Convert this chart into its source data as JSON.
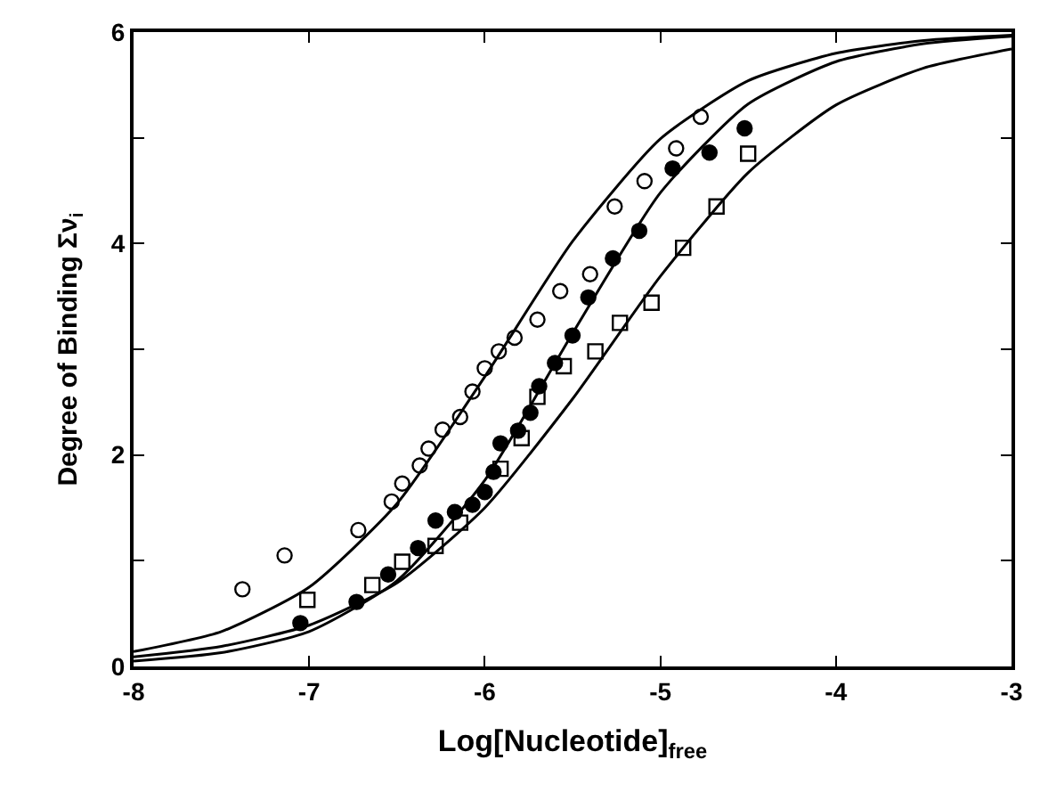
{
  "chart_data": {
    "type": "scatter",
    "xlabel": "Log[Nucleotide]$_{free}$",
    "ylabel": "Degree of Binding Σν$_{i}$",
    "xlim": [
      -8,
      -3
    ],
    "xticks": [
      -8,
      -7,
      -6,
      -5,
      -4,
      -3
    ],
    "ylim": [
      0,
      6
    ],
    "yticks": [
      0,
      {
        "value": 1,
        "label": null
      },
      2,
      {
        "value": 3,
        "label": null
      },
      4,
      {
        "value": 5,
        "label": null
      },
      6
    ],
    "series": [
      {
        "marker": "circle-open",
        "color": "#000000",
        "x": [
          -7.38,
          -7.14,
          -6.72,
          -6.53,
          -6.47,
          -6.37,
          -6.32,
          -6.24,
          -6.14,
          -6.07,
          -6.0,
          -5.92,
          -5.83,
          -5.7,
          -5.57,
          -5.4,
          -5.26,
          -5.09,
          -4.91,
          -4.77
        ],
        "values": [
          0.73,
          1.05,
          1.29,
          1.56,
          1.73,
          1.9,
          2.06,
          2.24,
          2.36,
          2.6,
          2.82,
          2.98,
          3.11,
          3.28,
          3.55,
          3.71,
          4.35,
          4.59,
          4.9,
          5.2
        ]
      },
      {
        "marker": "circle",
        "color": "#000000",
        "x": [
          -7.05,
          -6.73,
          -6.55,
          -6.38,
          -6.28,
          -6.17,
          -6.07,
          -6.0,
          -5.95,
          -5.91,
          -5.81,
          -5.74,
          -5.69,
          -5.6,
          -5.5,
          -5.41,
          -5.27,
          -5.12,
          -4.93,
          -4.72,
          -4.52
        ],
        "values": [
          0.41,
          0.61,
          0.87,
          1.12,
          1.38,
          1.46,
          1.53,
          1.65,
          1.84,
          2.11,
          2.23,
          2.4,
          2.65,
          2.87,
          3.13,
          3.49,
          3.86,
          4.12,
          4.71,
          4.86,
          5.09
        ]
      },
      {
        "marker": "square-open",
        "color": "#000000",
        "x": [
          -7.01,
          -6.64,
          -6.47,
          -6.28,
          -6.14,
          -5.91,
          -5.79,
          -5.7,
          -5.55,
          -5.37,
          -5.23,
          -5.05,
          -4.87,
          -4.68,
          -4.5
        ],
        "values": [
          0.63,
          0.77,
          0.99,
          1.14,
          1.36,
          1.87,
          2.16,
          2.55,
          2.84,
          2.98,
          3.25,
          3.44,
          3.96,
          4.35,
          4.85
        ]
      },
      {
        "type": "line",
        "line_style": "solid",
        "color": "#000000",
        "x": [
          -8,
          -7.5,
          -7,
          -6.5,
          -6,
          -5.5,
          -5,
          -4.5,
          -4,
          -3.5,
          -3
        ],
        "values": [
          0.14,
          0.33,
          0.75,
          1.54,
          2.74,
          4.02,
          4.99,
          5.54,
          5.8,
          5.92,
          5.97
        ]
      },
      {
        "type": "line",
        "line_style": "solid",
        "color": "#000000",
        "x": [
          -8,
          -7.5,
          -7,
          -6.5,
          -6,
          -5.5,
          -5,
          -4.5,
          -4,
          -3.5,
          -3
        ],
        "values": [
          0.05,
          0.13,
          0.33,
          0.81,
          1.76,
          3.15,
          4.48,
          5.32,
          5.72,
          5.89,
          5.96
        ]
      },
      {
        "type": "line",
        "line_style": "solid",
        "color": "#000000",
        "x": [
          -8,
          -7.5,
          -7,
          -6.5,
          -6,
          -5.5,
          -5,
          -4.5,
          -4,
          -3.5,
          -3
        ],
        "values": [
          0.09,
          0.19,
          0.39,
          0.79,
          1.5,
          2.53,
          3.69,
          4.67,
          5.31,
          5.66,
          5.84
        ]
      }
    ]
  }
}
